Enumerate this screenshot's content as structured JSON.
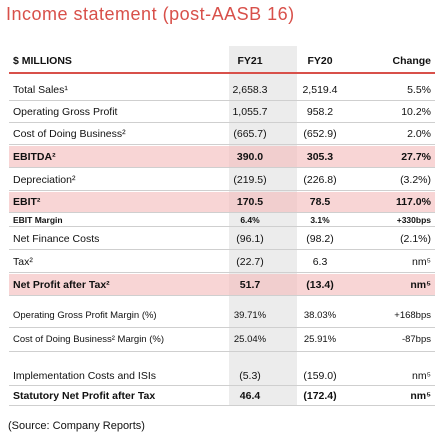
{
  "header": {
    "title": "Income statement (post-AASB 16)"
  },
  "table": {
    "columns": [
      "$ MILLIONS",
      "FY21",
      "FY20",
      "Change"
    ],
    "rows": [
      [
        "Total Sales¹",
        "2,658.3",
        "2,519.4",
        "5.5%"
      ],
      [
        "Operating Gross Profit",
        "1,055.7",
        "958.2",
        "10.2%"
      ],
      [
        "Cost of Doing Business²",
        "(665.7)",
        "(652.9)",
        "2.0%"
      ],
      [
        "EBITDA²",
        "390.0",
        "305.3",
        "27.7%"
      ],
      [
        "Depreciation²",
        "(219.5)",
        "(226.8)",
        "(3.2%)"
      ],
      [
        "EBIT²",
        "170.5",
        "78.5",
        "117.0%"
      ],
      [
        "EBIT Margin",
        "6.4%",
        "3.1%",
        "+330bps"
      ],
      [
        "Net Finance Costs",
        "(96.1)",
        "(98.2)",
        "(2.1%)"
      ],
      [
        "Tax²",
        "(22.7)",
        "6.3",
        "nm⁵"
      ],
      [
        "Net Profit after Tax²",
        "51.7",
        "(13.4)",
        "nm⁵"
      ],
      [
        "Operating Gross Profit Margin (%)",
        "39.71%",
        "38.03%",
        "+168bps"
      ],
      [
        "Cost of Doing Business² Margin (%)",
        "25.04%",
        "25.91%",
        "-87bps"
      ],
      [
        "Implementation Costs and ISIs",
        "(5.3)",
        "(159.0)",
        "nm⁵"
      ],
      [
        "Statutory Net Profit after Tax",
        "46.4",
        "(172.4)",
        "nm⁵"
      ]
    ]
  },
  "footer": {
    "source": "(Source: Company Reports)"
  }
}
